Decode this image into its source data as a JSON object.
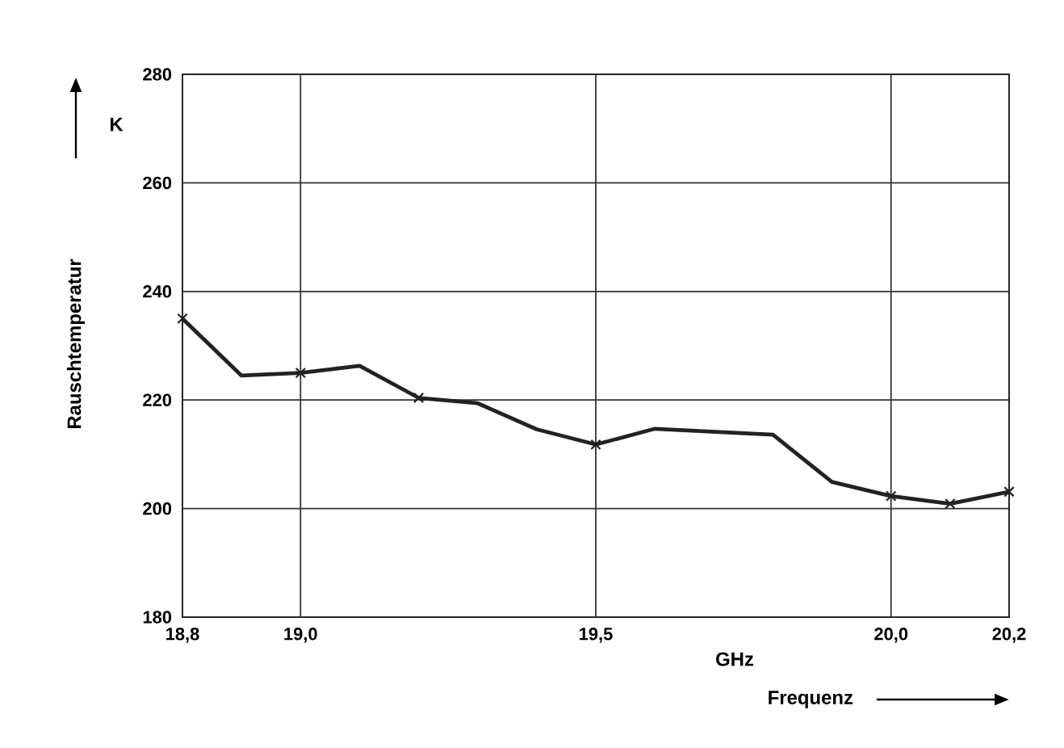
{
  "chart_data": {
    "type": "line",
    "xlabel": "Frequenz",
    "ylabel": "Rauschtemperatur",
    "annotations": [
      "K",
      "GHz"
    ],
    "xlim": [
      18.8,
      20.2
    ],
    "xticks": [
      {
        "value": 18.8,
        "label": "18,8"
      },
      {
        "value": 19.0,
        "label": "19,0"
      },
      {
        "value": 19.5,
        "label": "19,5"
      },
      {
        "value": 20.0,
        "label": "20,0"
      },
      {
        "value": 20.2,
        "label": "20,2"
      }
    ],
    "ylim": [
      180,
      280
    ],
    "yticks": [
      180,
      200,
      220,
      240,
      260,
      280
    ],
    "grid": true,
    "series": [
      {
        "marker": "none",
        "color": "#222222",
        "x": [
          18.8,
          18.9,
          19.0,
          19.1,
          19.2,
          19.3,
          19.4,
          19.5,
          19.6,
          19.8,
          19.9,
          20.0,
          20.1,
          20.2
        ],
        "values": [
          235,
          224.5,
          225,
          226.3,
          220.4,
          219.4,
          214.6,
          211.8,
          214.7,
          213.6,
          204.9,
          202.3,
          200.9,
          203.1
        ]
      },
      {
        "type": "scatter",
        "marker": "cross",
        "color": "#222222",
        "x": [
          18.8,
          19.0,
          19.2,
          19.5,
          20.0,
          20.1,
          20.2
        ],
        "values": [
          235,
          225,
          220.4,
          211.8,
          202.3,
          200.9,
          203.1
        ]
      }
    ]
  }
}
